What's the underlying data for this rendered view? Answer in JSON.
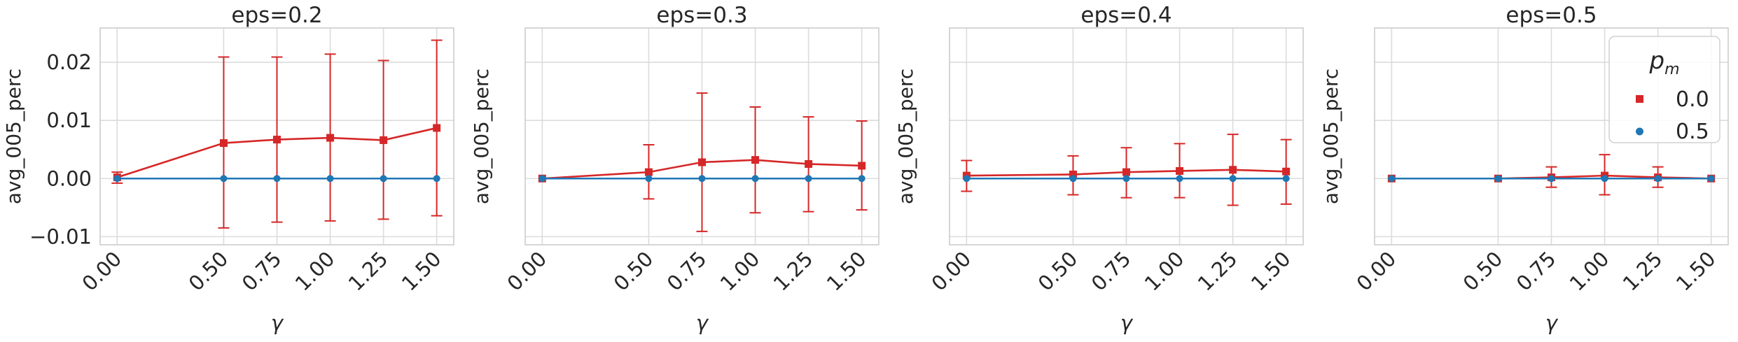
{
  "chart_data": [
    {
      "type": "line",
      "title": "eps=0.2",
      "xlabel": "γ",
      "ylabel": "avg_005_perc",
      "x": [
        0.0,
        0.5,
        0.75,
        1.0,
        1.25,
        1.5
      ],
      "x_tick_labels": [
        "0.00",
        "0.50",
        "0.75",
        "1.00",
        "1.25",
        "1.50"
      ],
      "xlim": [
        -0.08,
        1.58
      ],
      "ylim": [
        -0.0114,
        0.0259
      ],
      "y_ticks": [
        -0.01,
        0.0,
        0.01,
        0.02
      ],
      "y_tick_labels": [
        "−0.01",
        "0.00",
        "0.01",
        "0.02"
      ],
      "show_y_tick_labels": true,
      "grid": true,
      "series": [
        {
          "name": "0.0",
          "color": "#d62728",
          "marker": "square",
          "values": [
            0.0002,
            0.0061,
            0.0067,
            0.007,
            0.0066,
            0.0087
          ],
          "err_low": [
            -0.0008,
            -0.0085,
            -0.0075,
            -0.0073,
            -0.007,
            -0.0064
          ],
          "err_high": [
            0.0011,
            0.0209,
            0.0209,
            0.0214,
            0.0203,
            0.0238
          ]
        },
        {
          "name": "0.5",
          "color": "#1f77b4",
          "marker": "circle",
          "values": [
            0.0,
            0.0,
            0.0,
            0.0,
            0.0,
            0.0
          ],
          "err_low": [
            0.0,
            0.0,
            0.0,
            0.0,
            0.0,
            0.0
          ],
          "err_high": [
            0.0,
            0.0,
            0.0,
            0.0,
            0.0,
            0.0
          ]
        }
      ]
    },
    {
      "type": "line",
      "title": "eps=0.3",
      "xlabel": "γ",
      "ylabel": "avg_005_perc",
      "x": [
        0.0,
        0.5,
        0.75,
        1.0,
        1.25,
        1.5
      ],
      "x_tick_labels": [
        "0.00",
        "0.50",
        "0.75",
        "1.00",
        "1.25",
        "1.50"
      ],
      "xlim": [
        -0.08,
        1.58
      ],
      "ylim": [
        -0.0114,
        0.0259
      ],
      "y_ticks": [
        -0.01,
        0.0,
        0.01,
        0.02
      ],
      "y_tick_labels": [
        "",
        "",
        "",
        ""
      ],
      "show_y_tick_labels": false,
      "grid": true,
      "series": [
        {
          "name": "0.0",
          "color": "#d62728",
          "marker": "square",
          "values": [
            0.0,
            0.0011,
            0.0028,
            0.0032,
            0.0025,
            0.0022
          ],
          "err_low": [
            0.0,
            -0.0035,
            -0.0091,
            -0.0059,
            -0.0057,
            -0.0054
          ],
          "err_high": [
            0.0,
            0.0058,
            0.0147,
            0.0123,
            0.0106,
            0.0099
          ]
        },
        {
          "name": "0.5",
          "color": "#1f77b4",
          "marker": "circle",
          "values": [
            0.0,
            0.0,
            0.0,
            0.0,
            0.0,
            0.0
          ],
          "err_low": [
            0.0,
            0.0,
            0.0,
            0.0,
            0.0,
            0.0
          ],
          "err_high": [
            0.0,
            0.0,
            0.0,
            0.0,
            0.0,
            0.0
          ]
        }
      ]
    },
    {
      "type": "line",
      "title": "eps=0.4",
      "xlabel": "γ",
      "ylabel": "avg_005_perc",
      "x": [
        0.0,
        0.5,
        0.75,
        1.0,
        1.25,
        1.5
      ],
      "x_tick_labels": [
        "0.00",
        "0.50",
        "0.75",
        "1.00",
        "1.25",
        "1.50"
      ],
      "xlim": [
        -0.08,
        1.58
      ],
      "ylim": [
        -0.0114,
        0.0259
      ],
      "y_ticks": [
        -0.01,
        0.0,
        0.01,
        0.02
      ],
      "y_tick_labels": [
        "",
        "",
        "",
        ""
      ],
      "show_y_tick_labels": false,
      "grid": true,
      "series": [
        {
          "name": "0.0",
          "color": "#d62728",
          "marker": "square",
          "values": [
            0.0005,
            0.0007,
            0.0011,
            0.0013,
            0.0015,
            0.0012
          ],
          "err_low": [
            -0.0022,
            -0.0028,
            -0.0033,
            -0.0033,
            -0.0046,
            -0.0044
          ],
          "err_high": [
            0.0031,
            0.0039,
            0.0053,
            0.006,
            0.0076,
            0.0067
          ]
        },
        {
          "name": "0.5",
          "color": "#1f77b4",
          "marker": "circle",
          "values": [
            0.0,
            0.0,
            0.0,
            0.0,
            0.0,
            0.0
          ],
          "err_low": [
            0.0,
            0.0,
            0.0,
            0.0,
            0.0,
            0.0
          ],
          "err_high": [
            0.0,
            0.0,
            0.0,
            0.0,
            0.0,
            0.0
          ]
        }
      ]
    },
    {
      "type": "line",
      "title": "eps=0.5",
      "xlabel": "γ",
      "ylabel": "avg_005_perc",
      "x": [
        0.0,
        0.5,
        0.75,
        1.0,
        1.25,
        1.5
      ],
      "x_tick_labels": [
        "0.00",
        "0.50",
        "0.75",
        "1.00",
        "1.25",
        "1.50"
      ],
      "xlim": [
        -0.08,
        1.58
      ],
      "ylim": [
        -0.0114,
        0.0259
      ],
      "y_ticks": [
        -0.01,
        0.0,
        0.01,
        0.02
      ],
      "y_tick_labels": [
        "",
        "",
        "",
        ""
      ],
      "show_y_tick_labels": false,
      "grid": true,
      "legend": {
        "title": "p_m",
        "title_base": "p",
        "title_sub": "m",
        "placement": "top-right",
        "entries": [
          "0.0",
          "0.5"
        ]
      },
      "series": [
        {
          "name": "0.0",
          "color": "#d62728",
          "marker": "square",
          "values": [
            0.0,
            0.0,
            0.0002,
            0.0005,
            0.0002,
            0.0
          ],
          "err_low": [
            0.0,
            0.0,
            -0.0015,
            -0.0028,
            -0.0015,
            0.0
          ],
          "err_high": [
            0.0,
            0.0,
            0.002,
            0.0041,
            0.002,
            0.0
          ]
        },
        {
          "name": "0.5",
          "color": "#1f77b4",
          "marker": "circle",
          "values": [
            0.0,
            0.0,
            0.0,
            0.0,
            0.0,
            0.0
          ],
          "err_low": [
            0.0,
            0.0,
            0.0,
            0.0,
            0.0,
            0.0
          ],
          "err_high": [
            0.0,
            0.0,
            0.0,
            0.0,
            0.0,
            0.0
          ]
        }
      ]
    }
  ]
}
